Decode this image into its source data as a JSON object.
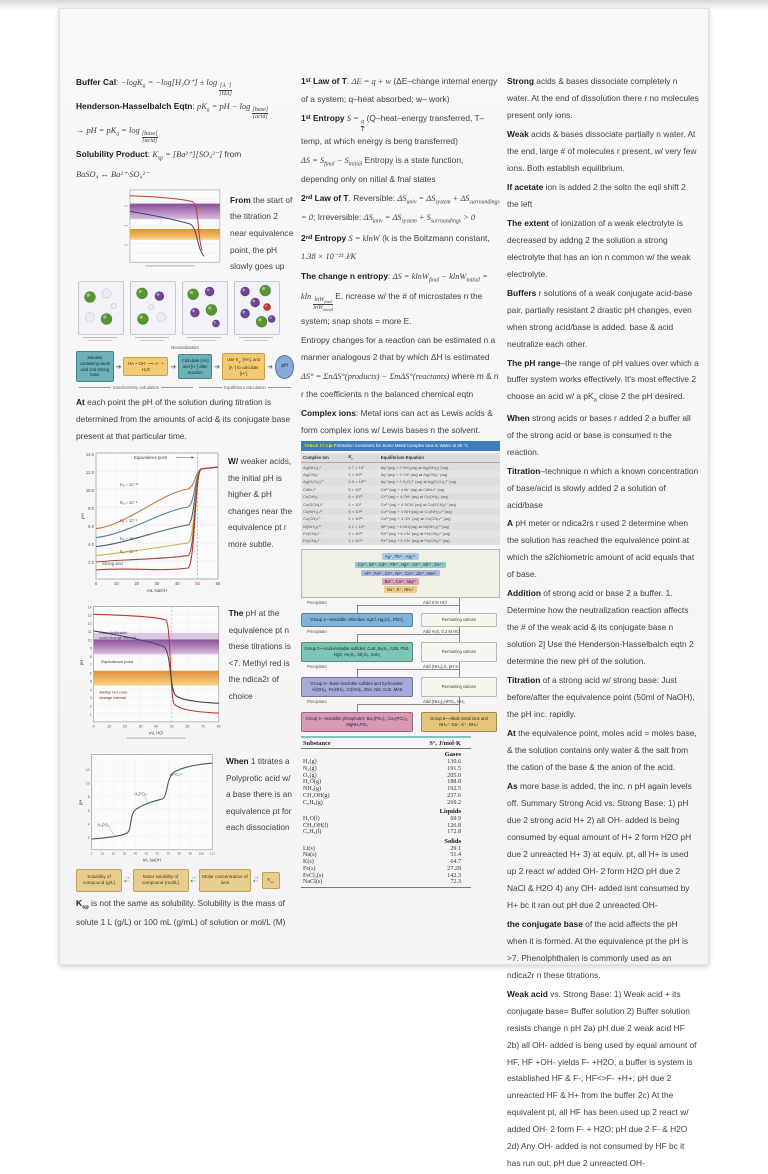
{
  "left": {
    "equations": [
      "**Buffer Cal**: //−logK~a~ = −log[H₃O⁺] ± log {[A⁻]|[HA]}//",
      "**Henderson-Hasselbalch Eqtn**: //pK~a~ = pH − log {[base]|[acid]}//",
      "//→ pH = pK~a~ = log {[base]|[acid]}//",
      "**Solubility Product**: //K~sp~ = [Ba²⁺][SO₄²⁻]// from",
      "//BaSO₄ ↔ Ba²⁺·SO₄²⁻//"
    ],
    "note_overview": "**From** the start of the titration 2 near equivalence point, the pH slowly goes up",
    "neutralization_flow": {
      "title": "Neutralization",
      "boxes": [
        {
          "style": "teal",
          "text": "Solution containing weak acid and strong base"
        },
        {
          "style": "yellow",
          "text": "HA + OH⁻ ⟶ A⁻ + H₂O"
        },
        {
          "style": "teal",
          "text": "Calculate [HA] and [A⁻] after reaction"
        },
        {
          "style": "yellow",
          "text": "Use K~a~, [HA], and [A⁻] to calculate [H⁺]"
        },
        {
          "style": "oval",
          "text": "pH"
        }
      ],
      "bracket_left": "Stoichiometry calculation",
      "bracket_right": "Equilibrium calculation"
    },
    "para_titration": "**At** each point the pH of the solution during titration is determined from the amounts of acid & its conjugate base present at that particular time.",
    "weak_acid_chart": {
      "annotation": "Equivalence point",
      "curve_labels": [
        "K⁠ₐ = 10⁻¹⁰",
        "Kₐ = 10⁻⁸",
        "Kₐ = 10⁻⁶",
        "Kₐ = 10⁻⁴",
        "Kₐ = 10⁻²"
      ],
      "strong_label": "Strong acid",
      "ylabel": "pH",
      "xlabel": "mL NaOH",
      "yticks": [
        "14.0",
        "12.0",
        "10.0",
        "8.0",
        "6.0",
        "4.0",
        "2.0"
      ],
      "xticks": [
        "0",
        "10",
        "20",
        "30",
        "40",
        "50",
        "60"
      ],
      "note": "**W/** weaker acids, the initial pH is higher & pH changes near the equivalence pt r more subtle."
    },
    "indicator_chart": {
      "band1_label_1": "Phenolphthalein",
      "band1_label_2": "color-change interval",
      "eq_label": "Equivalence point",
      "band2_label_1": "Methyl red color-",
      "band2_label_2": "change interval",
      "ylabel": "pH",
      "xlabel": "mL HCl",
      "yticks": [
        "14",
        "13",
        "12",
        "11",
        "10",
        "9",
        "8",
        "7",
        "6",
        "5",
        "4",
        "3",
        "2",
        "1"
      ],
      "xticks": [
        "0",
        "10",
        "20",
        "30",
        "40",
        "50",
        "60",
        "70",
        "80"
      ],
      "note": "**The** pH at the equivalence pt n these titrations is <7. Methyl red is the ndica2r of choice"
    },
    "polyprotic_chart": {
      "labels": [
        "HPO₄²⁻",
        "H₂PO₄⁻",
        "H₃PO₄"
      ],
      "ylabel": "pH",
      "xlabel": "mL NaOH",
      "yticks": [
        "12",
        "10",
        "8",
        "6",
        "4",
        "2"
      ],
      "xticks": [
        "0",
        "10",
        "20",
        "30",
        "40",
        "50",
        "60",
        "70",
        "80",
        "90",
        "100",
        "110"
      ],
      "note": "**When** 1 titrates a Polyprotic acid w/ a base there is an equivalence pt for each dissociation"
    },
    "ksp_flow": {
      "boxes": [
        "Solubility of compound (g/L)",
        "Molar solubility of compound (mol/L)",
        "Molar concentration of ions",
        "K~sp~"
      ]
    },
    "para_ksp": "**K~sp~** is not the same as solubility. Solubility is the mass of solute 1 L (g/L) or 100 mL (g/mL) of solution or mol/L (M)"
  },
  "middle": {
    "thermo": [
      "**1ˢᵗ Law of T**. //ΔE = q + w// (ΔE–change internal energy of a system; q–heat absorbed; w– work)",
      "**1ˢᵗ Entropy** //S = {q|T}// (Q–heat–energy transferred, T– temp, at which energy is beng transferred)",
      "//ΔS = S~final~ − S~initial~// Entropy is a state function, dependng only on nitial & fnal states",
      "**2ⁿᵈ Law of T**. Reversible: //ΔS~univ~ = ΔS~system~ + ΔS~surroundings~ = 0//; Irreversible: //ΔS~univ~ = ΔS~system~ + S~surroundings~ > 0//",
      "**2ⁿᵈ Entropy** //S = klnW// (k is the Boltzmann constant, //1.38 × 10⁻²³ J⁄K//",
      "**The change n entropy**: //ΔS = klnW~final~ − klnW~initial~ = kln {lnW~final~|lnW~initial~}// E. ncrease w/ the # of microstates n the system; snap shots = more E.",
      "Entropy changes for a reaction can be estimated n a manner analogous 2 that by which ΔH is estimated",
      "//ΔS° = ΣnΔS°(products) − ΣmΔS°(reactants)// where m & n r the coefficients n the balanced chemical eqtn",
      "**Complex ions**: Metal ions can act as Lewis acids & form complex ions w/ Lewis bases n the solvent."
    ],
    "kf_table": {
      "title_tag": "TABLE 17.1 ▶",
      "title": "Formation Constants for Some Metal Complex Ions in Water at 25 °C",
      "headers": [
        "Complex Ion",
        "K~f~",
        "Equilibrium Equation"
      ],
      "rows": [
        [
          "Ag(NH₃)₂⁺",
          "1.7 × 10⁷",
          "Ag⁺(aq) + 2 NH₃(aq) ⇌ Ag(NH₃)₂⁺(aq)"
        ],
        [
          "Ag(CN)₂⁻",
          "1 × 10²¹",
          "Ag⁺(aq) + 2 CN⁻(aq) ⇌ Ag(CN)₂⁻(aq)"
        ],
        [
          "Ag(S₂O₃)₂³⁻",
          "2.9 × 10¹³",
          "Ag⁺(aq) + 2 S₂O₃²⁻(aq) ⇌ Ag(S₂O₃)₂³⁻(aq)"
        ],
        [
          "CdBr₄²⁻",
          "5 × 10³",
          "Cd²⁺(aq) + 4 Br⁻(aq) ⇌ CdBr₄²⁻(aq)"
        ],
        [
          "Cr(OH)₄⁻",
          "8 × 10²⁹",
          "Cr³⁺(aq) + 4 OH⁻(aq) ⇌ Cr(OH)₄⁻(aq)"
        ],
        [
          "Co(SCN)₄²⁻",
          "1 × 10³",
          "Co²⁺(aq) + 4 SCN⁻(aq) ⇌ Co(SCN)₄²⁻(aq)"
        ],
        [
          "Cu(NH₃)₄²⁺",
          "5 × 10¹²",
          "Cu²⁺(aq) + 4 NH₃(aq) ⇌ Cu(NH₃)₄²⁺(aq)"
        ],
        [
          "Cu(CN)₄²⁻",
          "1 × 10²⁵",
          "Cu²⁺(aq) + 4 CN⁻(aq) ⇌ Cu(CN)₄²⁻(aq)"
        ],
        [
          "Ni(NH₃)₆²⁺",
          "1.2 × 10⁹",
          "Ni²⁺(aq) + 6 NH₃(aq) ⇌ Ni(NH₃)₆²⁺(aq)"
        ],
        [
          "Fe(CN)₆⁴⁻",
          "1 × 10³⁵",
          "Fe²⁺(aq) + 6 CN⁻(aq) ⇌ Fe(CN)₆⁴⁻(aq)"
        ],
        [
          "Fe(CN)₆³⁻",
          "1 × 10⁴²",
          "Fe³⁺(aq) + 6 CN⁻(aq) ⇌ Fe(CN)₆³⁻(aq)"
        ]
      ]
    },
    "qual_scheme": {
      "ion_rows": [
        {
          "color": "#a9c9e9",
          "text": "Ag⁺, Pb²⁺, Hg₂²⁺"
        },
        {
          "color": "#8fccc4",
          "text": "Cu²⁺, Bi³⁺, Cd²⁺, Pb²⁺, Hg²⁺, As³⁺, Sb³⁺, Sn⁴⁺"
        },
        {
          "color": "#aab5e1",
          "text": "Al³⁺, Fe³⁺, Cr³⁺, Ni²⁺, Co²⁺, Zn²⁺, Mn²⁺"
        },
        {
          "color": "#e1a2bd",
          "text": "Ba²⁺, Ca²⁺, Mg²⁺"
        },
        {
          "color": "#edcd81",
          "text": "Na⁺, K⁺, NH₄⁺"
        }
      ],
      "steps": [
        {
          "reagent": "Add 6 M HCl",
          "precipitate": "Precipitate",
          "group": {
            "color": "#80b3d9",
            "text": "Group 1—Insoluble chlorides: AgCl, Hg₂Cl₂, PbCl₂"
          },
          "remaining": "Remaining cations"
        },
        {
          "reagent": "Add H₂S, 0.2 M HCl",
          "precipitate": "Precipitate",
          "group": {
            "color": "#7dc5b5",
            "text": "Group 2—Acid-insoluble sulfides: CuS, Bi₂S₃, CdS, PbS, HgS, As₂S₃, Sb₂S₅, SnS₂"
          },
          "remaining": "Remaining cations"
        },
        {
          "reagent": "Add (NH₄)₂S, pH 8",
          "precipitate": "Precipitate",
          "group": {
            "color": "#a9a9d9",
            "text": "Group 3—Base-insoluble sulfides and hydroxides: Al(OH)₃, Fe(OH)₃, Cr(OH)₃, ZnS, NiS, CoS, MnS"
          },
          "remaining": "Remaining cations"
        },
        {
          "reagent": "Add (NH₄)₂HPO₄, NH₃",
          "precipitate": "Precipitate",
          "group": {
            "color": "#d999b5",
            "text": "Group 4—Insoluble phosphates: Ba₃(PO₄)₂, Ca₃(PO₄)₂, MgNH₄PO₄"
          },
          "final": {
            "color": "#e5c579",
            "text": "Group 5—Alkali metal ions and NH₄⁺: Na⁺, K⁺, NH₄⁺"
          }
        }
      ]
    },
    "entropy_table": {
      "headers": [
        "Substance",
        "S°, J/mol·K"
      ],
      "sections": [
        {
          "label": "Gases",
          "rows": [
            [
              "H₂(g)",
              "130.6"
            ],
            [
              "N₂(g)",
              "191.5"
            ],
            [
              "O₂(g)",
              "205.0"
            ],
            [
              "H₂O(g)",
              "188.8"
            ],
            [
              "NH₃(g)",
              "192.5"
            ],
            [
              "CH₃OH(g)",
              "237.6"
            ],
            [
              "C₆H₆(g)",
              "269.2"
            ]
          ]
        },
        {
          "label": "Liquids",
          "rows": [
            [
              "H₂O(l)",
              "69.9"
            ],
            [
              "CH₃OH(l)",
              "126.8"
            ],
            [
              "C₆H₆(l)",
              "172.8"
            ]
          ]
        },
        {
          "label": "Solids",
          "rows": [
            [
              "Li(s)",
              "29.1"
            ],
            [
              "Na(s)",
              "51.4"
            ],
            [
              "K(s)",
              "64.7"
            ],
            [
              "Fe(s)",
              "27.28"
            ],
            [
              "FeCl₃(s)",
              "142.3"
            ],
            [
              "NaCl(s)",
              "72.3"
            ]
          ]
        }
      ]
    }
  },
  "right": {
    "paragraphs": [
      "**Strong** acids & bases dissociate completely n water. At the end of dissolution there r no molecules present only ions.",
      "**Weak** acids & bases dissociate partially n water. At the end, large # of molecules r present, w/ very few ions. Both establish equilibrium.",
      "**If acetate** ion is added 2 the soltn the eqil shift 2 the left",
      "**The extent** of ionization of a weak electrolyte is decreased by addng 2 the solution a strong electrolyte that has an ion n common w/ the weak electrolyte.",
      "**Buffers** r solutions of a weak conjugate acid-base pair, partially resistant 2 drastic pH changes, even when strong acid/base is added. base & acid neutralize each other.",
      "**The pH range**–the range of pH values over which a buffer system works effectively. It's most effective 2 choose an acid w/ a pK~a~ close 2 the pH desired.",
      "**When** strong acids or bases r added 2 a buffer all of the strong acid or base is consumed n the reaction.",
      "**Titration**–technique n which a known concentration of base/acid is slowly added 2 a solution of acid/base",
      "**A** pH meter or ndica2rs r used 2 determine when the solution has reached the equivalence point at which the s2ichiometric amount of acid equals that of base.",
      "**Addition** of strong acid or base 2 a buffer. 1. Determine how the neutralization reaction affects the # of the weak acid & its conjugate base n solution 2] Use the Henderson-Hasselbalch eqtn 2 determine the new pH of the solution.",
      "**Titration** of a strong acid w/ strong base: Just before/after the equivalence point (50ml of NaOH), the pH inc. rapidly.",
      "**At** the equivalence point, moles acid = moles base, & the solution contains only water & the salt from the cation of the base & the anion of the acid.",
      "**As** more base is added, the inc. n pH again levels off. Summary Strong Acid vs. Strong Base: 1) pH due 2 strong acid H+ 2) all OH- added is being consumed by equal amount of H+ 2 form H2O pH due 2 unreacted H+ 3) at equiv. pt, all H+ is used up 2 react w/ added OH- 2 form H2O pH due 2 NaCl & H2O 4) any OH- added isnt consumed by H+ bc it ran out pH due 2 unreacted OH-",
      "**the conjugate base** of the acid affects the pH when it is formed. At the equivalence pt the pH is >7. Phenolphthalen is commonly used as an ndica2r n these titrations.",
      "**Weak acid** vs. Strong Base: 1) Weak acid + its conjugate base= Buffer solution 2) Buffer solution resists change n pH 2a) pH due 2 weak acid HF 2b) all OH- added is beng used by equal amount of HF, HF +OH- yields F- +H2O, a buffer is system is established HF & F-; HF<>F- +H+; pH due 2 unreacted HF & H+ from the buffer 2c) At the equivalent pt, all HF has been used up 2 react w/ added OH- 2 form F- + H2O; pH due 2 F- & H2O 2d) Any OH- added is not consumed by HF bc it has run out; pH due 2 unreacted OH-"
    ]
  }
}
